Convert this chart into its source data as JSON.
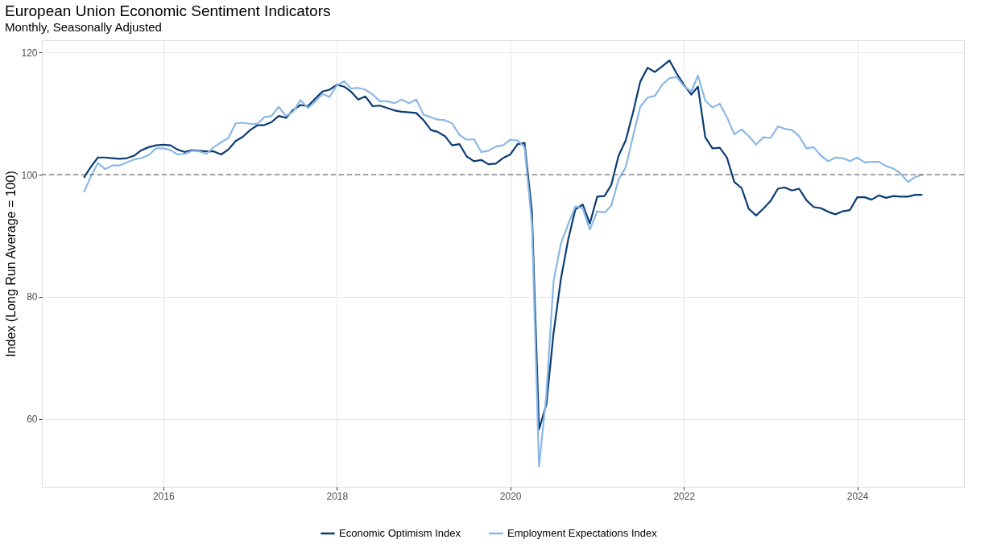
{
  "chart_data": {
    "type": "line",
    "title": "European Union Economic Sentiment Indicators",
    "subtitle": "Monthly, Seasonally Adjusted",
    "ylabel": "Index (Long Run Average = 100)",
    "x": [
      "2015-02",
      "2015-03",
      "2015-04",
      "2015-05",
      "2015-06",
      "2015-07",
      "2015-08",
      "2015-09",
      "2015-10",
      "2015-11",
      "2015-12",
      "2016-01",
      "2016-02",
      "2016-03",
      "2016-04",
      "2016-05",
      "2016-06",
      "2016-07",
      "2016-08",
      "2016-09",
      "2016-10",
      "2016-11",
      "2016-12",
      "2017-01",
      "2017-02",
      "2017-03",
      "2017-04",
      "2017-05",
      "2017-06",
      "2017-07",
      "2017-08",
      "2017-09",
      "2017-10",
      "2017-11",
      "2017-12",
      "2018-01",
      "2018-02",
      "2018-03",
      "2018-04",
      "2018-05",
      "2018-06",
      "2018-07",
      "2018-08",
      "2018-09",
      "2018-10",
      "2018-11",
      "2018-12",
      "2019-01",
      "2019-02",
      "2019-03",
      "2019-04",
      "2019-05",
      "2019-06",
      "2019-07",
      "2019-08",
      "2019-09",
      "2019-10",
      "2019-11",
      "2019-12",
      "2020-01",
      "2020-02",
      "2020-03",
      "2020-04",
      "2020-05",
      "2020-06",
      "2020-07",
      "2020-08",
      "2020-09",
      "2020-10",
      "2020-11",
      "2020-12",
      "2021-01",
      "2021-02",
      "2021-03",
      "2021-04",
      "2021-05",
      "2021-06",
      "2021-07",
      "2021-08",
      "2021-09",
      "2021-10",
      "2021-11",
      "2021-12",
      "2022-01",
      "2022-02",
      "2022-03",
      "2022-04",
      "2022-05",
      "2022-06",
      "2022-07",
      "2022-08",
      "2022-09",
      "2022-10",
      "2022-11",
      "2022-12",
      "2023-01",
      "2023-02",
      "2023-03",
      "2023-04",
      "2023-05",
      "2023-06",
      "2023-07",
      "2023-08",
      "2023-09",
      "2023-10",
      "2023-11",
      "2023-12",
      "2024-01",
      "2024-02",
      "2024-03",
      "2024-04",
      "2024-05",
      "2024-06",
      "2024-07",
      "2024-08",
      "2024-09",
      "2024-10"
    ],
    "series": [
      {
        "name": "Economic Optimism Index",
        "color": "#0b3c73",
        "values": [
          99.5,
          101.2,
          102.8,
          102.8,
          102.7,
          102.6,
          102.7,
          103.1,
          104.0,
          104.5,
          104.8,
          104.9,
          104.8,
          104.1,
          103.7,
          104.0,
          103.9,
          103.8,
          103.8,
          103.3,
          104.1,
          105.5,
          106.2,
          107.3,
          108.1,
          108.1,
          108.6,
          109.6,
          109.3,
          110.6,
          111.4,
          111.2,
          112.4,
          113.6,
          113.9,
          114.7,
          114.4,
          113.6,
          112.3,
          112.8,
          111.2,
          111.3,
          110.9,
          110.5,
          110.3,
          110.2,
          110.1,
          108.9,
          107.3,
          107.0,
          106.3,
          104.8,
          105.0,
          103.0,
          102.2,
          102.4,
          101.7,
          101.8,
          102.7,
          103.3,
          105.0,
          105.2,
          94.0,
          58.3,
          62.4,
          74.0,
          82.9,
          89.4,
          94.3,
          95.1,
          92.0,
          96.4,
          96.5,
          98.3,
          103.1,
          105.6,
          110.2,
          115.2,
          117.5,
          116.8,
          117.7,
          118.7,
          116.6,
          114.7,
          113.1,
          114.4,
          106.1,
          104.3,
          104.4,
          102.8,
          98.8,
          97.8,
          94.4,
          93.3,
          94.4,
          95.7,
          97.7,
          97.9,
          97.4,
          97.7,
          95.8,
          94.7,
          94.5,
          93.9,
          93.5,
          94.0,
          94.2,
          96.3,
          96.3,
          95.9,
          96.6,
          96.2,
          96.5,
          96.4,
          96.4,
          96.7,
          96.7
        ]
      },
      {
        "name": "Employment Expectations Index",
        "color": "#8ab8e6",
        "values": [
          97.1,
          99.6,
          101.9,
          100.9,
          101.5,
          101.5,
          102.0,
          102.5,
          102.7,
          103.2,
          104.3,
          104.3,
          104.0,
          103.3,
          103.4,
          103.9,
          103.8,
          103.4,
          104.5,
          105.3,
          106.0,
          108.4,
          108.5,
          108.3,
          108.3,
          109.4,
          109.6,
          111.1,
          109.6,
          110.3,
          112.2,
          110.9,
          111.9,
          113.2,
          112.7,
          114.6,
          115.3,
          114.1,
          114.2,
          113.9,
          113.1,
          112.0,
          112.0,
          111.7,
          112.3,
          111.7,
          112.3,
          109.8,
          109.4,
          109.0,
          108.9,
          108.4,
          106.5,
          105.7,
          105.8,
          103.7,
          103.9,
          104.6,
          104.8,
          105.7,
          105.6,
          104.5,
          92.0,
          52.2,
          64.0,
          82.5,
          88.7,
          91.9,
          94.8,
          94.5,
          91.0,
          94.0,
          93.8,
          94.9,
          99.2,
          101.2,
          106.3,
          111.1,
          112.6,
          112.9,
          114.7,
          115.8,
          116.0,
          114.5,
          113.6,
          116.2,
          112.1,
          111.0,
          111.6,
          109.4,
          106.6,
          107.4,
          106.3,
          104.9,
          106.1,
          106.0,
          107.9,
          107.5,
          107.3,
          106.3,
          104.3,
          104.5,
          103.1,
          102.2,
          102.8,
          102.7,
          102.2,
          102.8,
          102.0,
          102.1,
          102.1,
          101.4,
          101.0,
          100.2,
          98.8,
          99.6,
          100.0
        ]
      }
    ],
    "xlim": [
      "2014-08-08",
      "2025-03-25"
    ],
    "ylim": [
      48.9,
      122.0
    ],
    "xticks": [
      "2016",
      "2018",
      "2020",
      "2022",
      "2024"
    ],
    "yticks": [
      60,
      80,
      100,
      120
    ],
    "ref_lines": [
      {
        "axis": "y",
        "value": 100,
        "label": null,
        "color": "#555555",
        "line_style": "dashed"
      }
    ],
    "grid": true,
    "legend": "bottom",
    "marker": "none",
    "line_style": "solid"
  }
}
